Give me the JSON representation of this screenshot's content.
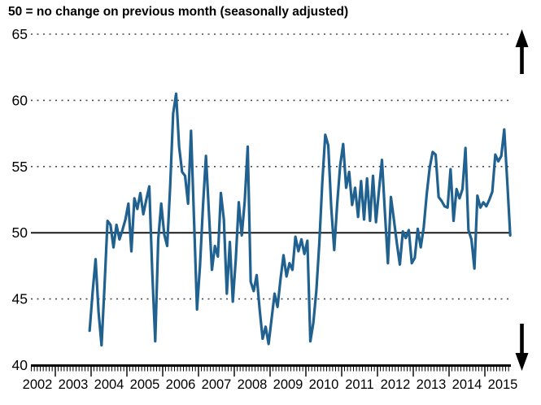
{
  "title": "50 = no change on previous month (seasonally adjusted)",
  "icons": {
    "up_arrow": "up-arrow-icon",
    "down_arrow": "down-arrow-icon"
  },
  "colors": {
    "line": "#20618f",
    "baseline": "#1a1a1a",
    "gridline": "#4a4a4a",
    "axis": "#000000",
    "text": "#000000"
  },
  "chart_data": {
    "type": "line",
    "title": "50 = no change on previous month (seasonally adjusted)",
    "xlabel": "",
    "ylabel": "",
    "ylim": [
      40,
      65
    ],
    "yticks": [
      40,
      45,
      50,
      55,
      60,
      65
    ],
    "baseline_value": 50,
    "dotted_gridlines": [
      45,
      55,
      60,
      65
    ],
    "grid": "dotted horizontal",
    "legend": "none",
    "x_year_labels": [
      "2002",
      "2003",
      "2004",
      "2005",
      "2006",
      "2007",
      "2008",
      "2009",
      "2010",
      "2011",
      "2012",
      "2013",
      "2014",
      "2015"
    ],
    "x_minor_tick_unit": "month",
    "series_start_year": 2003,
    "series_start_month": 12,
    "series": [
      {
        "name": "index (50 = no change, seasonally adjusted)",
        "values": [
          42.6,
          45.5,
          48.0,
          44.0,
          41.5,
          46.0,
          50.9,
          50.6,
          48.9,
          50.6,
          49.5,
          50.2,
          51.0,
          52.2,
          48.6,
          52.6,
          51.8,
          53.0,
          51.4,
          52.5,
          53.5,
          47.0,
          41.8,
          49.5,
          52.2,
          49.9,
          49.0,
          53.5,
          59.0,
          60.5,
          56.5,
          54.6,
          54.3,
          52.2,
          57.7,
          51.0,
          44.2,
          47.5,
          52.0,
          55.8,
          51.5,
          47.2,
          49.0,
          48.2,
          53.0,
          51.0,
          45.4,
          49.3,
          44.8,
          48.0,
          52.3,
          49.8,
          52.4,
          56.5,
          46.3,
          45.6,
          46.8,
          44.2,
          42.0,
          42.9,
          41.6,
          43.5,
          45.4,
          44.4,
          46.5,
          48.3,
          46.7,
          47.7,
          47.2,
          49.7,
          48.6,
          49.5,
          48.4,
          49.4,
          41.8,
          43.2,
          45.6,
          49.2,
          53.8,
          57.4,
          56.6,
          51.9,
          48.7,
          52.2,
          55.1,
          56.7,
          53.4,
          54.6,
          52.1,
          53.4,
          51.2,
          53.9,
          51.0,
          54.1,
          50.9,
          54.3,
          50.8,
          53.2,
          55.5,
          51.5,
          47.7,
          52.7,
          51.0,
          49.2,
          47.6,
          50.1,
          49.6,
          50.2,
          47.7,
          48.1,
          50.3,
          48.9,
          50.4,
          52.9,
          54.9,
          56.1,
          55.9,
          52.7,
          52.4,
          52.0,
          51.9,
          54.8,
          50.9,
          53.3,
          52.6,
          53.3,
          56.4,
          50.2,
          49.5,
          47.3,
          52.8,
          51.9,
          52.3,
          52.0,
          52.5,
          53.1,
          55.9,
          55.4,
          55.8,
          57.8,
          53.9,
          49.8
        ]
      }
    ]
  }
}
